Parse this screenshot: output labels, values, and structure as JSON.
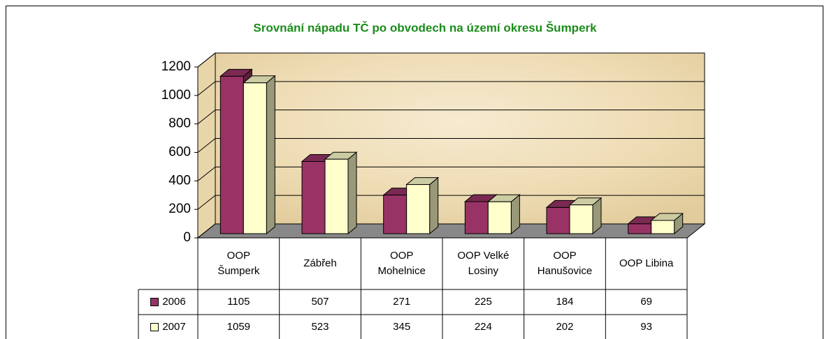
{
  "chart_data": {
    "type": "bar3d",
    "title": "Srovnání nápadu TČ po obvodech na území okresu Šumperk",
    "categories": [
      "OOP Šumperk",
      "Zábřeh",
      "OOP Mohelnice",
      "OOP Velké Losiny",
      "OOP Hanušovice",
      "OOP Libina"
    ],
    "series": [
      {
        "name": "2006",
        "color": "#993366",
        "values": [
          1105,
          507,
          271,
          225,
          184,
          69
        ]
      },
      {
        "name": "2007",
        "color": "#ffffcc",
        "values": [
          1059,
          523,
          345,
          224,
          202,
          93
        ]
      }
    ],
    "ylim": [
      0,
      1200
    ],
    "yticks": [
      0,
      200,
      400,
      600,
      800,
      1000,
      1200
    ],
    "grid": true
  }
}
